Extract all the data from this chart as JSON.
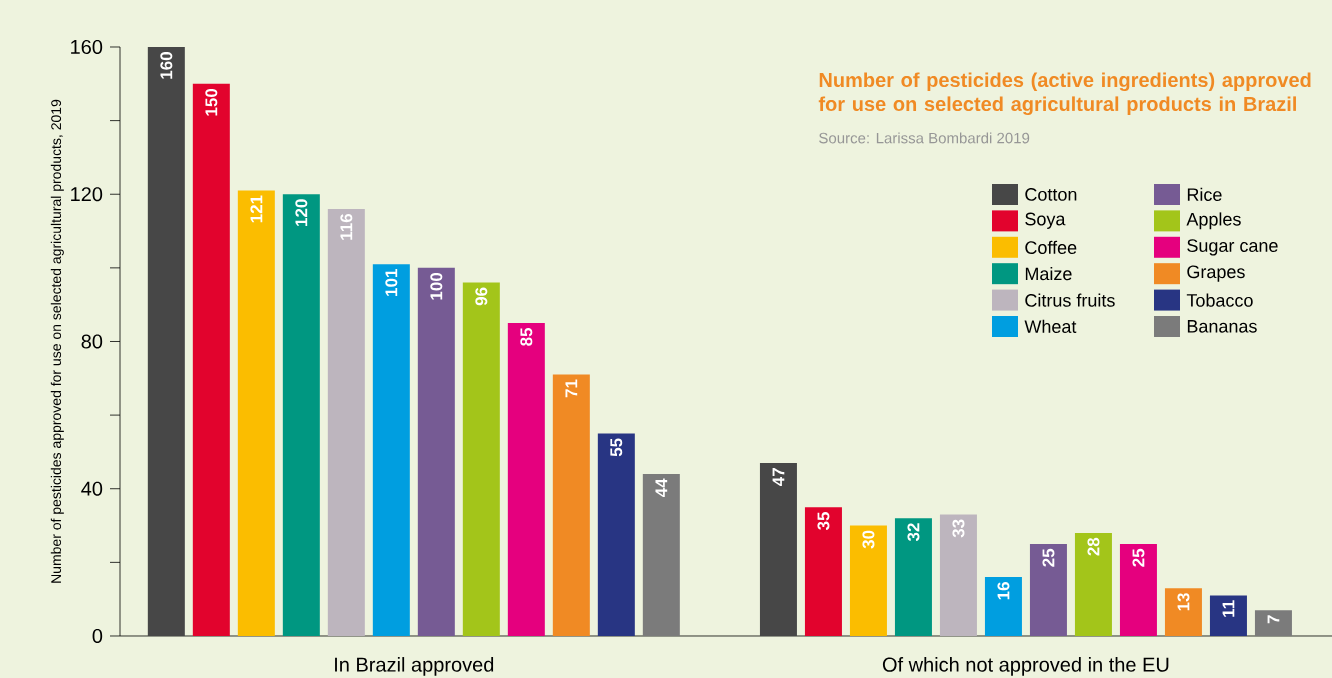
{
  "chart_data": {
    "type": "bar",
    "title": "Number of pesticides (active ingredients) approved for use on selected agricultural products in Brazil",
    "annotations": [
      "Source: Larissa Bombardi 2019"
    ],
    "ylabel": "Number of pesticides approved for use on selected agricultural products, 2019",
    "categories": [
      "In Brazil approved",
      "Of which not approved in the EU"
    ],
    "series": [
      {
        "name": "Cotton",
        "color": "#474747",
        "values": [
          160,
          47
        ]
      },
      {
        "name": "Soya",
        "color": "#e2032d",
        "values": [
          150,
          35
        ]
      },
      {
        "name": "Coffee",
        "color": "#fbbd00",
        "values": [
          121,
          30
        ]
      },
      {
        "name": "Maize",
        "color": "#009781",
        "values": [
          120,
          32
        ]
      },
      {
        "name": "Citrus fruits",
        "color": "#bdb5be",
        "values": [
          116,
          33
        ]
      },
      {
        "name": "Wheat",
        "color": "#009ee0",
        "values": [
          101,
          16
        ]
      },
      {
        "name": "Rice",
        "color": "#765b94",
        "values": [
          100,
          25
        ]
      },
      {
        "name": "Apples",
        "color": "#a3c51a",
        "values": [
          96,
          28
        ]
      },
      {
        "name": "Sugar cane",
        "color": "#e5007e",
        "values": [
          85,
          25
        ]
      },
      {
        "name": "Grapes",
        "color": "#f08a24",
        "values": [
          71,
          13
        ]
      },
      {
        "name": "Tobacco",
        "color": "#283583",
        "values": [
          55,
          11
        ]
      },
      {
        "name": "Bananas",
        "color": "#7b7b7b",
        "values": [
          44,
          7
        ]
      }
    ],
    "ylim": [
      0,
      160
    ],
    "yticks": [
      0,
      {
        "value": 20,
        "label": null
      },
      40,
      {
        "value": 60,
        "label": null
      },
      80,
      {
        "value": 100,
        "label": null
      },
      120,
      {
        "value": 140,
        "label": null
      },
      160
    ],
    "data_labels": true,
    "legend": "top right",
    "grid": false
  }
}
